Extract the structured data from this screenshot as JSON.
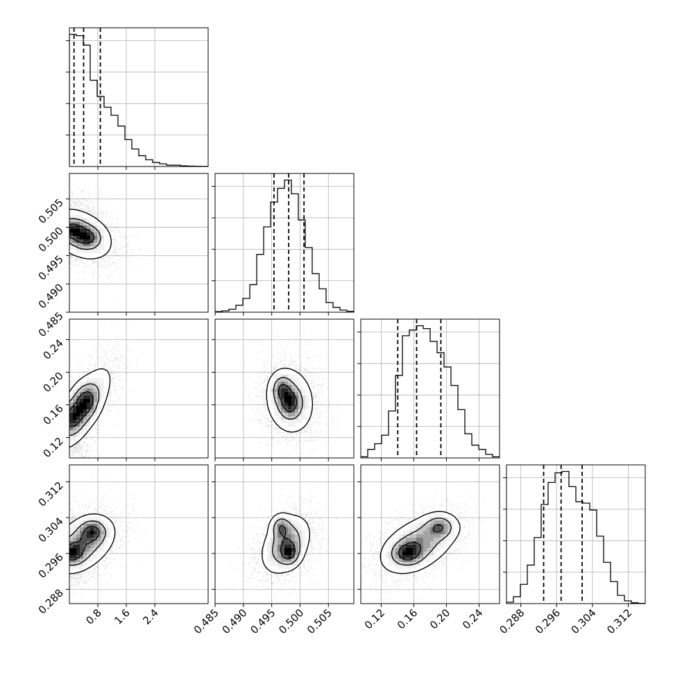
{
  "chart_data": {
    "type": "corner",
    "title": "",
    "parameters": [
      {
        "key": "p0",
        "range": [
          0.0,
          3.9
        ],
        "ticks": [
          0.8,
          1.6,
          2.4
        ],
        "tick_labels": [
          "0.8",
          "1.6",
          "2.4"
        ],
        "quantiles": [
          0.13,
          0.4,
          0.87
        ],
        "histogram": [
          0.98,
          0.97,
          0.9,
          0.64,
          0.52,
          0.44,
          0.38,
          0.3,
          0.2,
          0.13,
          0.08,
          0.05,
          0.03,
          0.02,
          0.01,
          0.01,
          0.005,
          0.003,
          0.002,
          0.001
        ]
      },
      {
        "key": "p1",
        "range": [
          0.485,
          0.5095
        ],
        "ticks": [
          0.485,
          0.49,
          0.495,
          0.5,
          0.505
        ],
        "tick_labels": [
          "0.485",
          "0.490",
          "0.495",
          "0.500",
          "0.505"
        ],
        "quantiles": [
          0.4954,
          0.498,
          0.5007
        ],
        "histogram": [
          0.004,
          0.01,
          0.022,
          0.05,
          0.1,
          0.2,
          0.42,
          0.62,
          0.8,
          0.9,
          0.96,
          0.86,
          0.67,
          0.47,
          0.28,
          0.17,
          0.07,
          0.035,
          0.015,
          0.007
        ]
      },
      {
        "key": "p2",
        "range": [
          0.095,
          0.265
        ],
        "ticks": [
          0.12,
          0.16,
          0.2,
          0.24
        ],
        "tick_labels": [
          "0.12",
          "0.16",
          "0.20",
          "0.24"
        ],
        "quantiles": [
          0.1403,
          0.1634,
          0.1931
        ],
        "histogram": [
          0.008,
          0.06,
          0.1,
          0.16,
          0.33,
          0.58,
          0.86,
          0.9,
          0.93,
          0.91,
          0.82,
          0.74,
          0.64,
          0.51,
          0.34,
          0.17,
          0.09,
          0.06,
          0.025,
          0.008
        ]
      },
      {
        "key": "p3",
        "range": [
          0.2848,
          0.3158
        ],
        "ticks": [
          0.288,
          0.296,
          0.304,
          0.312
        ],
        "tick_labels": [
          "0.288",
          "0.296",
          "0.304",
          "0.312"
        ],
        "quantiles": [
          0.2931,
          0.297,
          0.3017
        ],
        "histogram": [
          0.01,
          0.05,
          0.14,
          0.28,
          0.48,
          0.72,
          0.88,
          0.95,
          0.96,
          0.85,
          0.74,
          0.73,
          0.68,
          0.49,
          0.3,
          0.16,
          0.06,
          0.02,
          0.006,
          0.002
        ]
      }
    ],
    "pairs": [
      {
        "x": 0,
        "y": 1,
        "mean": [
          0.3,
          0.4988
        ],
        "sd": [
          0.5,
          0.0025
        ],
        "rho": -0.35,
        "cores": [
          [
            0.05,
            0.4995
          ],
          [
            0.5,
            0.4982
          ]
        ]
      },
      {
        "x": 0,
        "y": 2,
        "mean": [
          0.35,
          0.155
        ],
        "sd": [
          0.45,
          0.028
        ],
        "rho": 0.72,
        "cores": [
          [
            0.05,
            0.145
          ],
          [
            0.45,
            0.165
          ]
        ]
      },
      {
        "x": 1,
        "y": 2,
        "mean": [
          0.4982,
          0.165
        ],
        "sd": [
          0.0023,
          0.022
        ],
        "rho": -0.1,
        "cores": [
          [
            0.4982,
            0.162
          ],
          [
            0.4968,
            0.18
          ]
        ]
      },
      {
        "x": 0,
        "y": 3,
        "mean": [
          0.35,
          0.298
        ],
        "sd": [
          0.5,
          0.0035
        ],
        "rho": 0.4,
        "cores": [
          [
            0.05,
            0.296
          ],
          [
            0.65,
            0.301
          ]
        ]
      },
      {
        "x": 1,
        "y": 3,
        "mean": [
          0.4975,
          0.298
        ],
        "sd": [
          0.0023,
          0.0035
        ],
        "rho": 0.35,
        "cores": [
          [
            0.4982,
            0.296
          ],
          [
            0.4966,
            0.302
          ]
        ]
      },
      {
        "x": 2,
        "y": 3,
        "mean": [
          0.165,
          0.298
        ],
        "sd": [
          0.025,
          0.0035
        ],
        "rho": 0.45,
        "cores": [
          [
            0.152,
            0.296
          ],
          [
            0.192,
            0.302
          ]
        ]
      }
    ]
  }
}
